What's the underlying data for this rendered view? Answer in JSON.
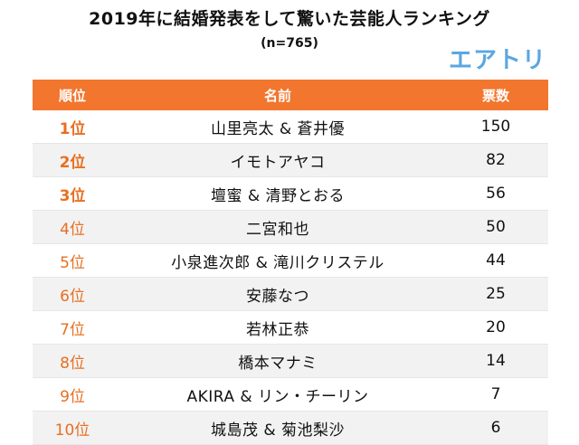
{
  "title": "2019年に結婚発表をして驚いた芸能人ランキング",
  "subtitle": "(n=765)",
  "logo": "エアトリ",
  "chart_data": {
    "type": "table",
    "columns": [
      "順位",
      "名前",
      "票数"
    ],
    "rows": [
      {
        "rank": "1位",
        "name": "山里亮太 & 蒼井優",
        "votes": 150
      },
      {
        "rank": "2位",
        "name": "イモトアヤコ",
        "votes": 82
      },
      {
        "rank": "3位",
        "name": "壇蜜 & 清野とおる",
        "votes": 56
      },
      {
        "rank": "4位",
        "name": "二宮和也",
        "votes": 50
      },
      {
        "rank": "5位",
        "name": "小泉進次郎 & 滝川クリステル",
        "votes": 44
      },
      {
        "rank": "6位",
        "name": "安藤なつ",
        "votes": 25
      },
      {
        "rank": "7位",
        "name": "若林正恭",
        "votes": 20
      },
      {
        "rank": "8位",
        "name": "橋本マナミ",
        "votes": 14
      },
      {
        "rank": "9位",
        "name": "AKIRA & リン・チーリン",
        "votes": 7
      },
      {
        "rank": "10位",
        "name": "城島茂 & 菊池梨沙",
        "votes": 6
      }
    ]
  },
  "colors": {
    "header_bg": "#f2762e",
    "rank_text": "#e86f21",
    "logo": "#5ba7e0",
    "stripe": "#f2f2f2"
  }
}
